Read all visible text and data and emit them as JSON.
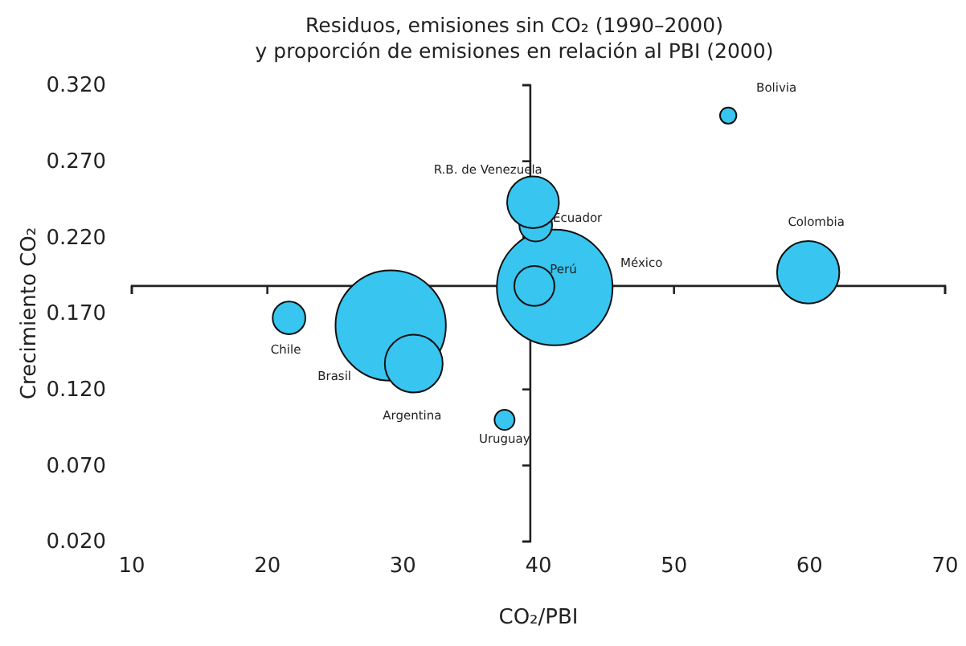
{
  "chart_data": {
    "type": "bubble",
    "title": "Residuos, emisiones sin CO₂ (1990–2000)",
    "subtitle": "y proporción de emisiones en relación al PBI (2000)",
    "xlabel": "CO₂/PBI",
    "ylabel": "Crecimiento CO₂",
    "xlim": [
      10,
      70
    ],
    "xticks": [
      10,
      20,
      30,
      40,
      50,
      60,
      70
    ],
    "ylim": [
      0.02,
      0.32
    ],
    "yticks": [
      {
        "value": 0.02,
        "label": "0.020"
      },
      {
        "value": 0.07,
        "label": "0.070"
      },
      {
        "value": 0.12,
        "label": "0.120"
      },
      {
        "value": 0.17,
        "label": "0.170"
      },
      {
        "value": 0.22,
        "label": "0.220"
      },
      {
        "value": 0.27,
        "label": "0.270"
      },
      {
        "value": 0.32,
        "label": "0.320"
      }
    ],
    "ref_lines": [
      {
        "axis": "x",
        "value": 39.4
      },
      {
        "axis": "y",
        "value": 0.188
      }
    ],
    "grid": false,
    "legend": false,
    "series": [
      {
        "name": "México",
        "color": "#38c5f0",
        "x": [
          41.2
        ],
        "values": [
          0.187
        ],
        "sizes": [
          1
        ]
      },
      {
        "name": "Brasil",
        "color": "#38c5f0",
        "x": [
          29.1
        ],
        "values": [
          0.162
        ],
        "sizes": [
          0.91
        ]
      },
      {
        "name": "Colombia",
        "color": "#38c5f0",
        "x": [
          59.9
        ],
        "values": [
          0.197
        ],
        "sizes": [
          0.29
        ]
      },
      {
        "name": "Argentina",
        "color": "#38c5f0",
        "x": [
          30.8
        ],
        "values": [
          0.137
        ],
        "sizes": [
          0.25
        ]
      },
      {
        "name": "Ecuador",
        "color": "#38c5f0",
        "x": [
          39.8
        ],
        "values": [
          0.228
        ],
        "sizes": [
          0.08
        ]
      },
      {
        "name": "R.B. de Venezuela",
        "color": "#38c5f0",
        "x": [
          39.6
        ],
        "values": [
          0.243
        ],
        "sizes": [
          0.2
        ]
      },
      {
        "name": "Perú",
        "color": "#38c5f0",
        "x": [
          39.7
        ],
        "values": [
          0.188
        ],
        "sizes": [
          0.12
        ]
      },
      {
        "name": "Chile",
        "color": "#38c5f0",
        "x": [
          21.6
        ],
        "values": [
          0.167
        ],
        "sizes": [
          0.08
        ]
      },
      {
        "name": "Uruguay",
        "color": "#38c5f0",
        "x": [
          37.5
        ],
        "values": [
          0.1
        ],
        "sizes": [
          0.03
        ]
      },
      {
        "name": "Bolivia",
        "color": "#38c5f0",
        "x": [
          54.0
        ],
        "values": [
          0.3
        ],
        "sizes": [
          0.02
        ]
      }
    ]
  }
}
